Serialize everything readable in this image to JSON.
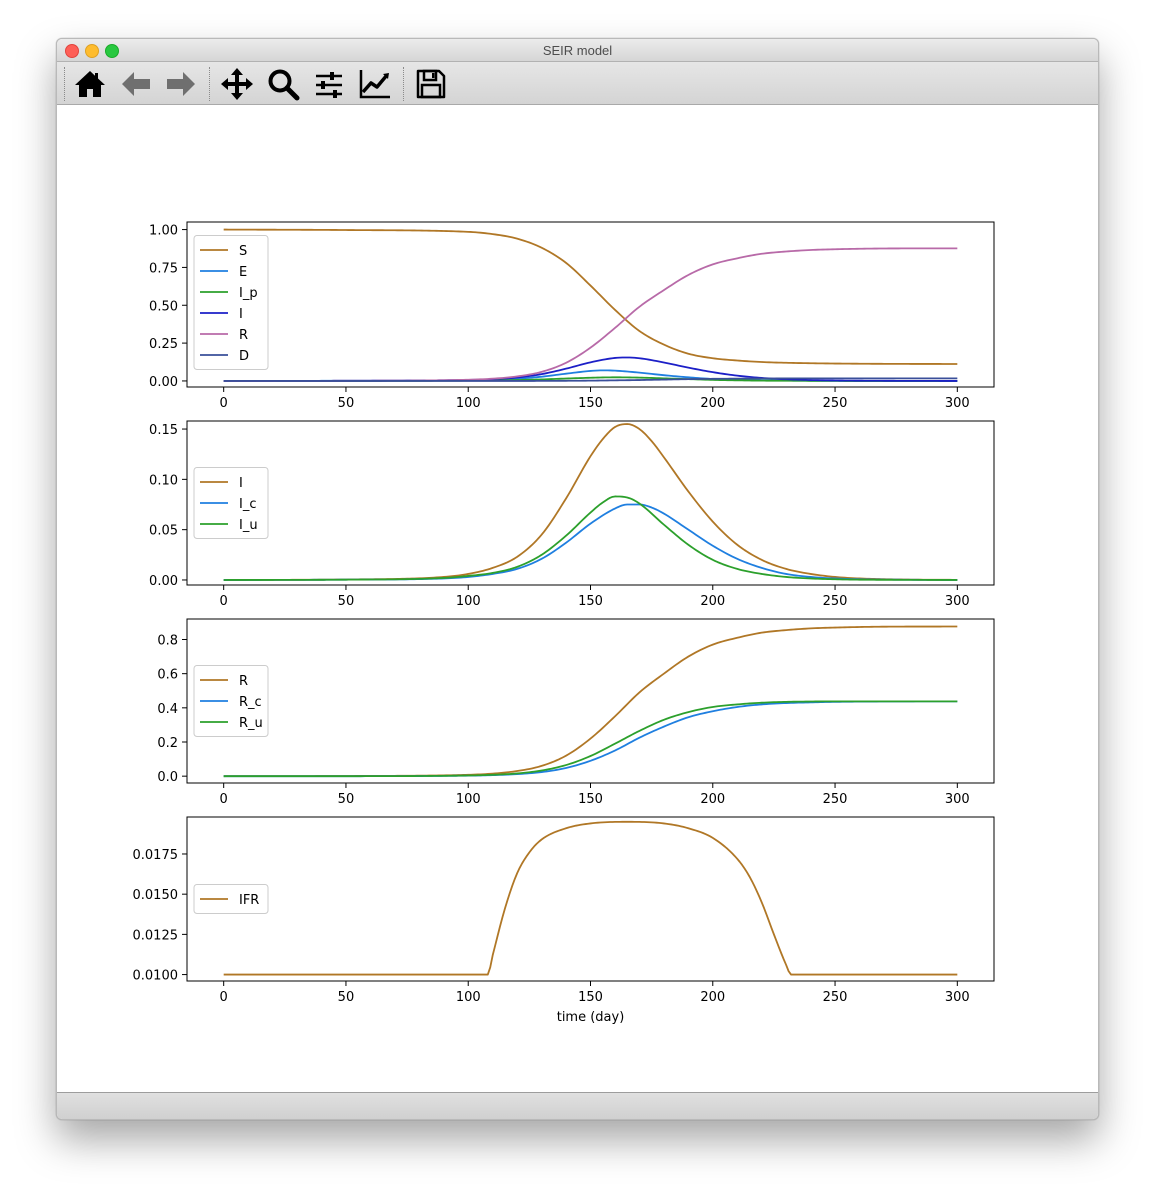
{
  "window": {
    "title": "SEIR model"
  },
  "toolbar": {
    "buttons": [
      {
        "name": "home-button",
        "icon": "home-icon"
      },
      {
        "name": "back-button",
        "icon": "arrow-left-icon"
      },
      {
        "name": "forward-button",
        "icon": "arrow-right-icon"
      },
      {
        "name": "pan-button",
        "icon": "move-icon"
      },
      {
        "name": "zoom-button",
        "icon": "magnifier-icon"
      },
      {
        "name": "subplots-button",
        "icon": "sliders-icon"
      },
      {
        "name": "edit-axes-button",
        "icon": "line-chart-icon"
      },
      {
        "name": "save-button",
        "icon": "floppy-disk-icon"
      }
    ]
  },
  "chart_data": [
    {
      "type": "line",
      "x_range": [
        0,
        300
      ],
      "xlim": [
        -15,
        315
      ],
      "ylim": [
        -0.04,
        1.05
      ],
      "x_ticks": [
        0,
        50,
        100,
        150,
        200,
        250,
        300
      ],
      "y_ticks": [
        0.0,
        0.25,
        0.5,
        0.75,
        1.0
      ],
      "y_tick_labels": [
        "0.00",
        "0.25",
        "0.50",
        "0.75",
        "1.00"
      ],
      "x_tick_labels": [
        "0",
        "50",
        "100",
        "150",
        "200",
        "250",
        "300"
      ],
      "legend": "left",
      "series": [
        {
          "name": "S",
          "color": "#b07726",
          "x": [
            0,
            50,
            100,
            110,
            120,
            130,
            140,
            150,
            160,
            170,
            180,
            190,
            200,
            210,
            220,
            230,
            240,
            250,
            270,
            300
          ],
          "y": [
            1.0,
            0.997,
            0.985,
            0.97,
            0.94,
            0.88,
            0.78,
            0.63,
            0.47,
            0.33,
            0.24,
            0.18,
            0.15,
            0.135,
            0.125,
            0.12,
            0.117,
            0.115,
            0.113,
            0.112
          ]
        },
        {
          "name": "E",
          "color": "#1f7fe0",
          "x": [
            0,
            50,
            100,
            110,
            120,
            130,
            140,
            150,
            155,
            160,
            170,
            180,
            190,
            200,
            210,
            220,
            240,
            260,
            300
          ],
          "y": [
            0.0,
            0.001,
            0.004,
            0.008,
            0.015,
            0.028,
            0.048,
            0.066,
            0.07,
            0.068,
            0.055,
            0.038,
            0.024,
            0.013,
            0.007,
            0.004,
            0.001,
            0.0,
            0.0
          ]
        },
        {
          "name": "I_p",
          "color": "#2ca02c",
          "x": [
            0,
            50,
            100,
            110,
            120,
            130,
            140,
            150,
            160,
            170,
            180,
            190,
            200,
            210,
            220,
            240,
            260,
            300
          ],
          "y": [
            0.0,
            0.0,
            0.002,
            0.003,
            0.006,
            0.01,
            0.016,
            0.021,
            0.024,
            0.022,
            0.017,
            0.012,
            0.007,
            0.004,
            0.002,
            0.001,
            0.0,
            0.0
          ]
        },
        {
          "name": "I",
          "color": "#1c1fc7",
          "x": [
            0,
            50,
            100,
            110,
            120,
            130,
            140,
            150,
            160,
            165,
            170,
            180,
            190,
            200,
            210,
            220,
            230,
            240,
            250,
            270,
            300
          ],
          "y": [
            0.0,
            0.001,
            0.007,
            0.012,
            0.023,
            0.045,
            0.081,
            0.123,
            0.152,
            0.155,
            0.15,
            0.122,
            0.088,
            0.058,
            0.035,
            0.02,
            0.011,
            0.006,
            0.003,
            0.001,
            0.0
          ]
        },
        {
          "name": "R",
          "color": "#b86aa8",
          "x": [
            0,
            50,
            100,
            110,
            120,
            130,
            140,
            150,
            160,
            170,
            180,
            190,
            200,
            210,
            220,
            230,
            240,
            250,
            270,
            300
          ],
          "y": [
            0.0,
            0.001,
            0.008,
            0.015,
            0.03,
            0.06,
            0.12,
            0.22,
            0.35,
            0.49,
            0.6,
            0.7,
            0.77,
            0.81,
            0.84,
            0.855,
            0.865,
            0.87,
            0.875,
            0.876
          ]
        },
        {
          "name": "D",
          "color": "#3a4f9a",
          "x": [
            0,
            50,
            100,
            120,
            140,
            150,
            160,
            170,
            180,
            190,
            200,
            210,
            220,
            240,
            260,
            300
          ],
          "y": [
            0.0,
            0.0,
            0.0,
            0.0,
            0.001,
            0.002,
            0.004,
            0.006,
            0.009,
            0.012,
            0.014,
            0.015,
            0.016,
            0.017,
            0.017,
            0.017
          ]
        }
      ]
    },
    {
      "type": "line",
      "x_range": [
        0,
        300
      ],
      "xlim": [
        -15,
        315
      ],
      "ylim": [
        -0.005,
        0.158
      ],
      "x_ticks": [
        0,
        50,
        100,
        150,
        200,
        250,
        300
      ],
      "y_ticks": [
        0.0,
        0.05,
        0.1,
        0.15
      ],
      "y_tick_labels": [
        "0.00",
        "0.05",
        "0.10",
        "0.15"
      ],
      "x_tick_labels": [
        "0",
        "50",
        "100",
        "150",
        "200",
        "250",
        "300"
      ],
      "legend": "left",
      "series": [
        {
          "name": "I",
          "color": "#b07726",
          "x": [
            0,
            50,
            90,
            100,
            110,
            120,
            130,
            140,
            150,
            155,
            160,
            165,
            170,
            175,
            180,
            190,
            200,
            210,
            220,
            230,
            240,
            250,
            260,
            280,
            300
          ],
          "y": [
            0.0,
            0.0005,
            0.003,
            0.006,
            0.012,
            0.023,
            0.045,
            0.081,
            0.123,
            0.14,
            0.152,
            0.155,
            0.15,
            0.138,
            0.122,
            0.088,
            0.058,
            0.035,
            0.02,
            0.011,
            0.006,
            0.003,
            0.0015,
            0.0004,
            0.0001
          ]
        },
        {
          "name": "I_c",
          "color": "#1f7fe0",
          "x": [
            0,
            50,
            90,
            100,
            110,
            120,
            130,
            140,
            150,
            160,
            165,
            170,
            175,
            180,
            190,
            200,
            210,
            220,
            230,
            240,
            250,
            260,
            280,
            300
          ],
          "y": [
            0.0,
            0.0003,
            0.0015,
            0.003,
            0.006,
            0.011,
            0.021,
            0.037,
            0.056,
            0.071,
            0.075,
            0.075,
            0.072,
            0.066,
            0.05,
            0.034,
            0.021,
            0.012,
            0.006,
            0.003,
            0.0015,
            0.0007,
            0.0002,
            0.0
          ]
        },
        {
          "name": "I_u",
          "color": "#2ca02c",
          "x": [
            0,
            50,
            90,
            100,
            110,
            120,
            130,
            140,
            150,
            155,
            160,
            165,
            170,
            180,
            190,
            200,
            210,
            220,
            230,
            240,
            250,
            260,
            280,
            300
          ],
          "y": [
            0.0,
            0.0003,
            0.002,
            0.004,
            0.007,
            0.013,
            0.025,
            0.044,
            0.067,
            0.077,
            0.083,
            0.082,
            0.076,
            0.055,
            0.035,
            0.02,
            0.011,
            0.006,
            0.003,
            0.0015,
            0.0007,
            0.0003,
            0.0001,
            0.0
          ]
        }
      ]
    },
    {
      "type": "line",
      "x_range": [
        0,
        300
      ],
      "xlim": [
        -15,
        315
      ],
      "ylim": [
        -0.04,
        0.92
      ],
      "x_ticks": [
        0,
        50,
        100,
        150,
        200,
        250,
        300
      ],
      "y_ticks": [
        0.0,
        0.2,
        0.4,
        0.6,
        0.8
      ],
      "y_tick_labels": [
        "0.0",
        "0.2",
        "0.4",
        "0.6",
        "0.8"
      ],
      "x_tick_labels": [
        "0",
        "50",
        "100",
        "150",
        "200",
        "250",
        "300"
      ],
      "legend": "left",
      "series": [
        {
          "name": "R",
          "color": "#b07726",
          "x": [
            0,
            50,
            100,
            110,
            120,
            130,
            140,
            150,
            160,
            170,
            180,
            190,
            200,
            210,
            220,
            230,
            240,
            250,
            270,
            300
          ],
          "y": [
            0.0,
            0.001,
            0.008,
            0.015,
            0.03,
            0.06,
            0.12,
            0.22,
            0.35,
            0.49,
            0.6,
            0.7,
            0.77,
            0.81,
            0.84,
            0.855,
            0.865,
            0.87,
            0.875,
            0.876
          ]
        },
        {
          "name": "R_c",
          "color": "#1f7fe0",
          "x": [
            0,
            50,
            100,
            110,
            120,
            130,
            140,
            150,
            160,
            170,
            180,
            190,
            200,
            210,
            220,
            230,
            240,
            250,
            270,
            300
          ],
          "y": [
            0.0,
            0.0,
            0.003,
            0.006,
            0.012,
            0.024,
            0.048,
            0.09,
            0.15,
            0.225,
            0.29,
            0.345,
            0.38,
            0.405,
            0.42,
            0.428,
            0.432,
            0.435,
            0.437,
            0.438
          ]
        },
        {
          "name": "R_u",
          "color": "#2ca02c",
          "x": [
            0,
            50,
            100,
            110,
            120,
            130,
            140,
            150,
            160,
            170,
            180,
            190,
            200,
            210,
            220,
            230,
            240,
            250,
            270,
            300
          ],
          "y": [
            0.0,
            0.0,
            0.004,
            0.008,
            0.016,
            0.033,
            0.065,
            0.118,
            0.19,
            0.265,
            0.33,
            0.375,
            0.405,
            0.42,
            0.43,
            0.435,
            0.437,
            0.438,
            0.438,
            0.438
          ]
        }
      ]
    },
    {
      "type": "line",
      "x_range": [
        0,
        300
      ],
      "xlim": [
        -15,
        315
      ],
      "ylim": [
        0.0096,
        0.0198
      ],
      "x_ticks": [
        0,
        50,
        100,
        150,
        200,
        250,
        300
      ],
      "y_ticks": [
        0.01,
        0.0125,
        0.015,
        0.0175
      ],
      "y_tick_labels": [
        "0.0100",
        "0.0125",
        "0.0150",
        "0.0175"
      ],
      "x_tick_labels": [
        "0",
        "50",
        "100",
        "150",
        "200",
        "250",
        "300"
      ],
      "xlabel": "time (day)",
      "legend": "left",
      "series": [
        {
          "name": "IFR",
          "color": "#b07726",
          "x": [
            0,
            108,
            110,
            115,
            120,
            125,
            130,
            140,
            150,
            165,
            180,
            190,
            200,
            210,
            215,
            220,
            225,
            230,
            232,
            240,
            300
          ],
          "y": [
            0.01,
            0.01,
            0.0112,
            0.0141,
            0.0163,
            0.0176,
            0.0184,
            0.0191,
            0.0194,
            0.0195,
            0.0194,
            0.0191,
            0.0185,
            0.0172,
            0.0161,
            0.0145,
            0.0125,
            0.0106,
            0.01,
            0.01,
            0.01
          ]
        }
      ]
    }
  ]
}
